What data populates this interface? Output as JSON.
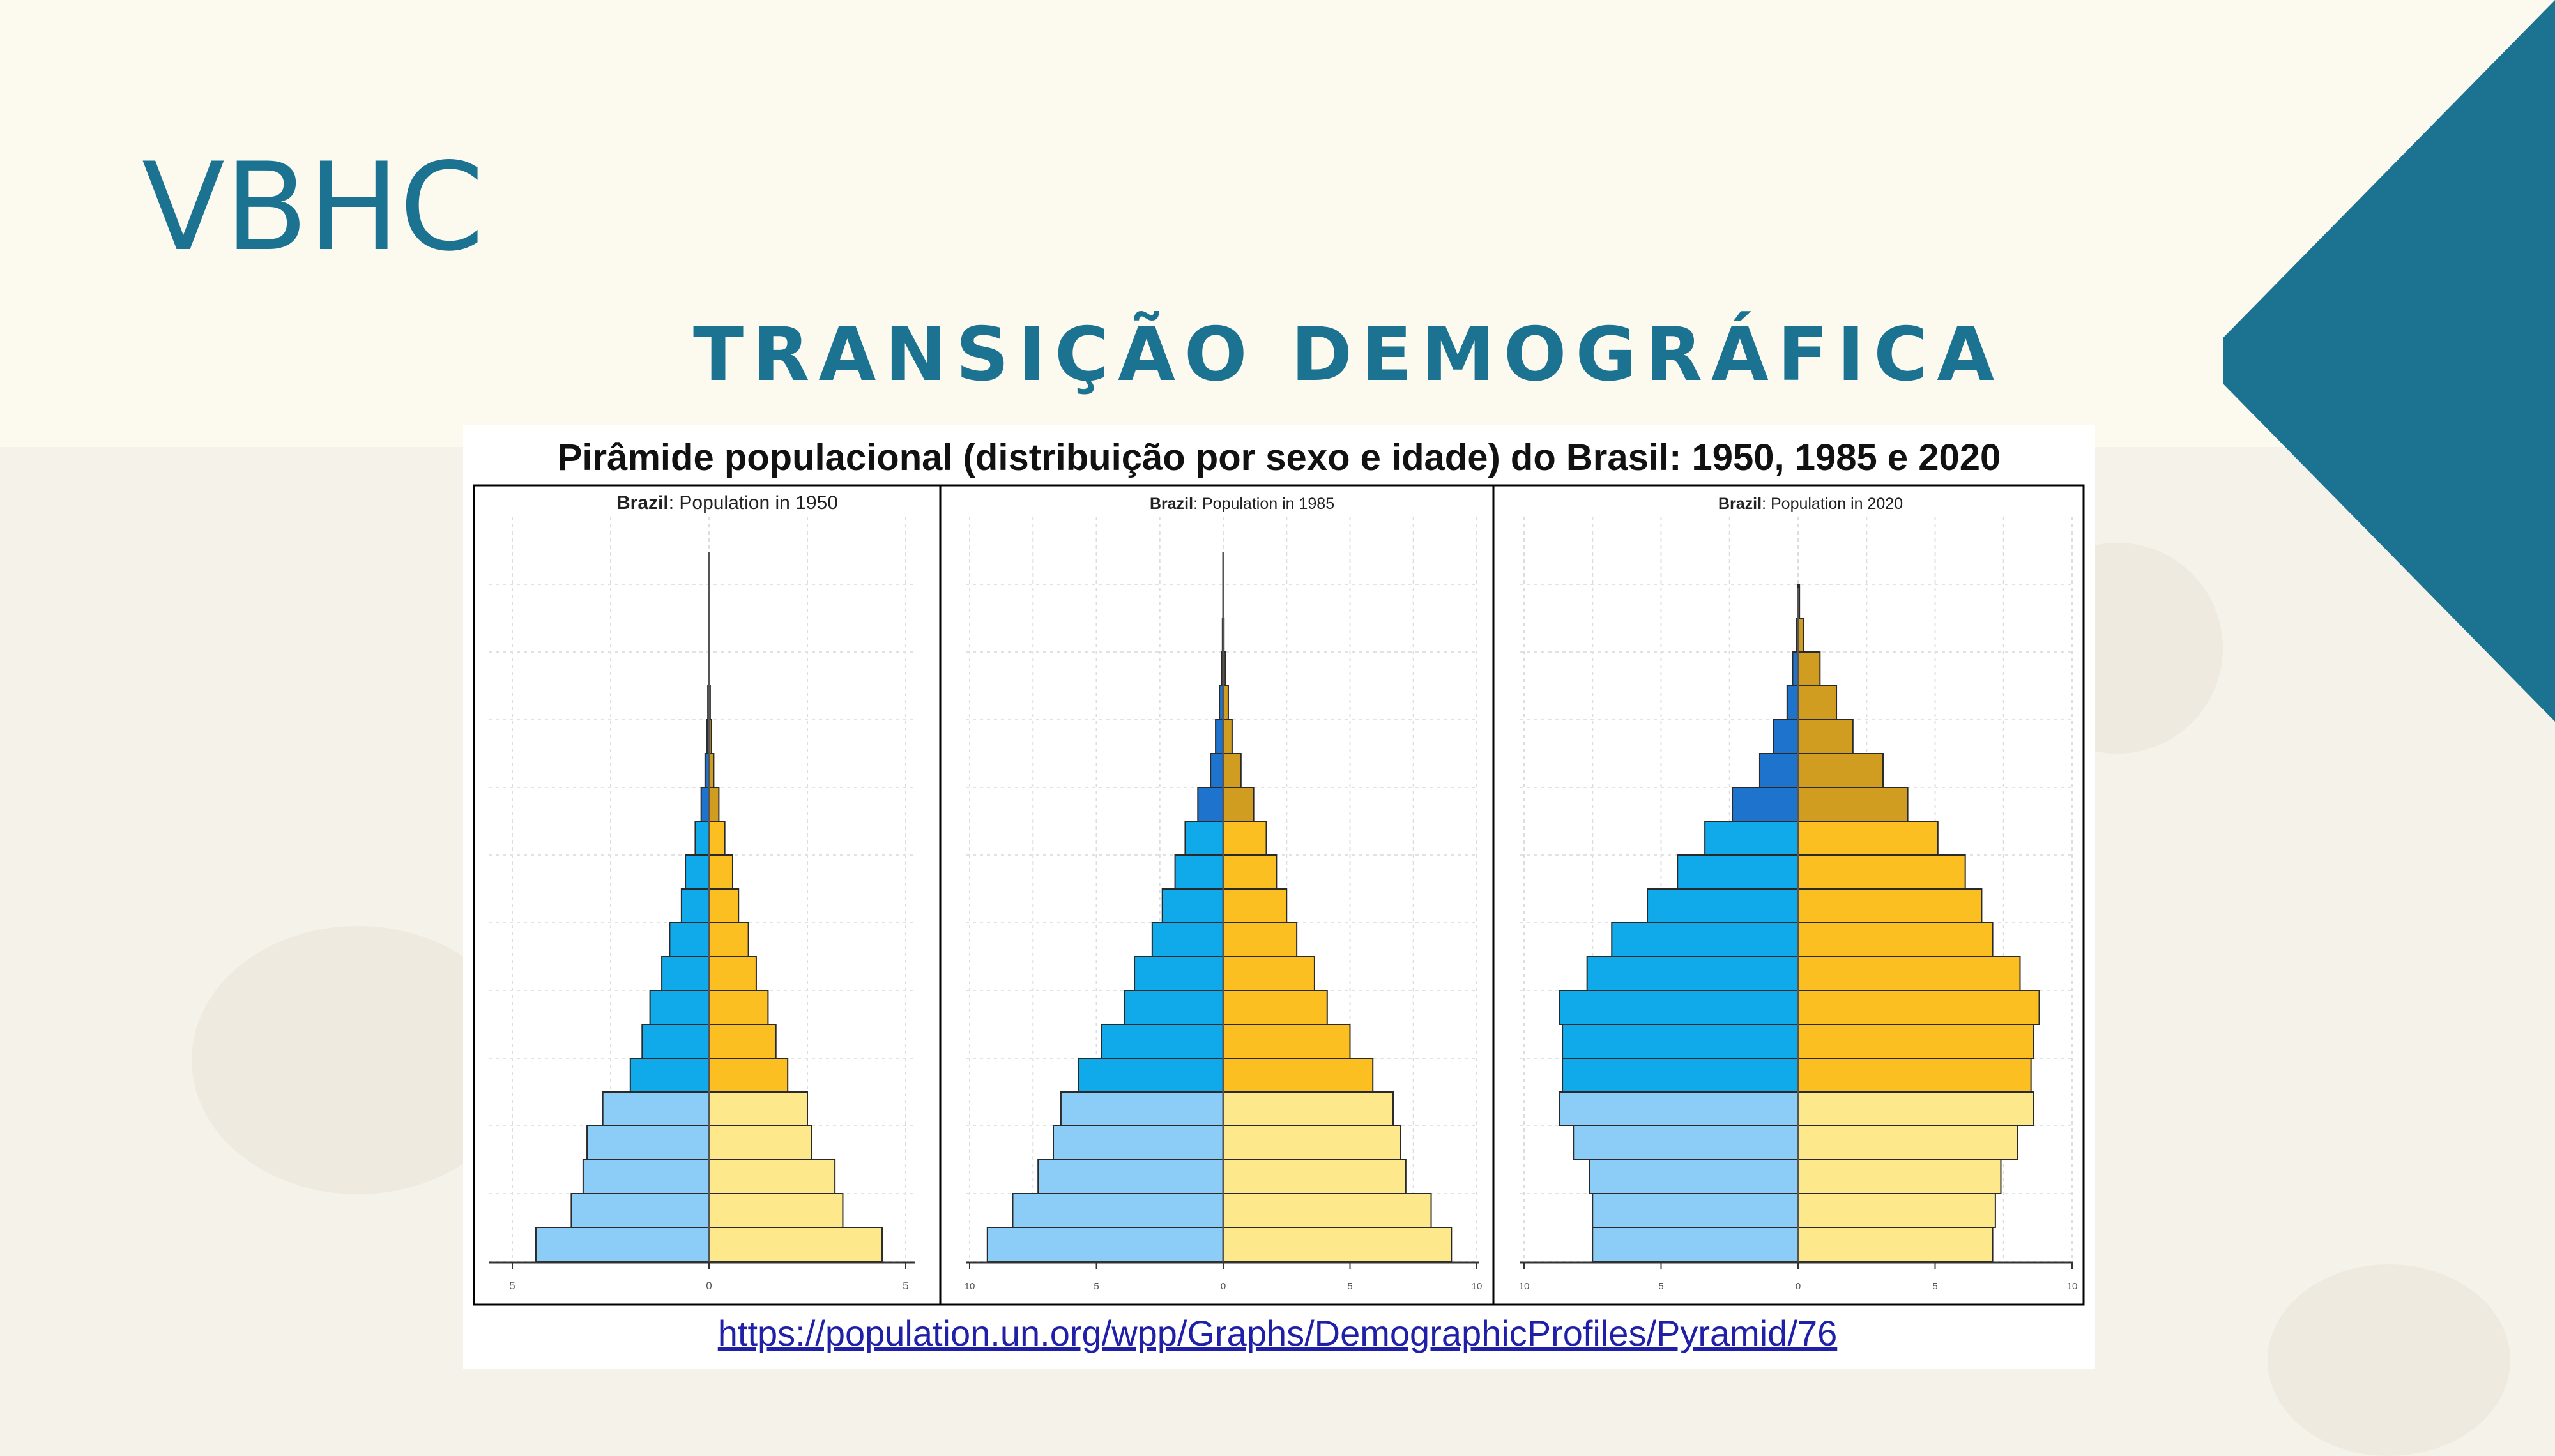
{
  "slide": {
    "title": "VBHC",
    "subtitle": "TRANSIÇÃO DEMOGRÁFICA",
    "accent_color": "#1b7391"
  },
  "figure": {
    "title": "Pirâmide populacional (distribuição por sexo e idade) do Brasil: 1950, 1985 e 2020",
    "source_link": "https://population.un.org/wpp/Graphs/DemographicProfiles/Pyramid/76"
  },
  "colors": {
    "male_young": "#8ccdf7",
    "male_adult": "#10aaeb",
    "male_old": "#1e73cc",
    "female_young": "#fde98b",
    "female_adult": "#fbbf22",
    "female_old": "#d09d20"
  },
  "chart_data": [
    {
      "type": "bar",
      "subtype": "population-pyramid",
      "country": "Brazil",
      "title_rest": ": Population in 1950",
      "xlim": [
        -5,
        5
      ],
      "x_ticks": [
        5,
        0,
        5
      ],
      "male": [
        4.4,
        3.5,
        3.2,
        3.1,
        2.7,
        2.0,
        1.7,
        1.5,
        1.2,
        1.0,
        0.7,
        0.6,
        0.35,
        0.2,
        0.1,
        0.05,
        0.03,
        0.01,
        0.005,
        0.002
      ],
      "female": [
        4.4,
        3.4,
        3.2,
        2.6,
        2.5,
        2.0,
        1.7,
        1.5,
        1.2,
        1.0,
        0.75,
        0.6,
        0.4,
        0.25,
        0.12,
        0.06,
        0.03,
        0.01,
        0.005,
        0.002
      ]
    },
    {
      "type": "bar",
      "subtype": "population-pyramid",
      "country": "Brazil",
      "title_rest": ": Population in 1985",
      "xlim": [
        -10,
        10
      ],
      "x_ticks": [
        10,
        5,
        0,
        5,
        10
      ],
      "male": [
        9.3,
        8.3,
        7.3,
        6.7,
        6.4,
        5.7,
        4.8,
        3.9,
        3.5,
        2.8,
        2.4,
        1.9,
        1.5,
        1.0,
        0.5,
        0.3,
        0.15,
        0.06,
        0.03,
        0.01
      ],
      "female": [
        9.0,
        8.2,
        7.2,
        7.0,
        6.7,
        5.9,
        5.0,
        4.1,
        3.6,
        2.9,
        2.5,
        2.1,
        1.7,
        1.2,
        0.7,
        0.35,
        0.2,
        0.08,
        0.03,
        0.01
      ]
    },
    {
      "type": "bar",
      "subtype": "population-pyramid",
      "country": "Brazil",
      "title_rest": ": Population in 2020",
      "xlim": [
        -10,
        10
      ],
      "x_ticks": [
        10,
        5,
        0,
        5,
        10
      ],
      "male": [
        7.5,
        7.5,
        7.6,
        8.2,
        8.7,
        8.6,
        8.6,
        8.7,
        7.7,
        6.8,
        5.5,
        4.4,
        3.4,
        2.4,
        1.4,
        0.9,
        0.4,
        0.2,
        0.05,
        0.01
      ],
      "female": [
        7.1,
        7.2,
        7.4,
        8.0,
        8.6,
        8.5,
        8.6,
        8.8,
        8.1,
        7.1,
        6.7,
        6.1,
        5.1,
        4.0,
        3.1,
        2.0,
        1.4,
        0.8,
        0.2,
        0.05
      ]
    }
  ]
}
